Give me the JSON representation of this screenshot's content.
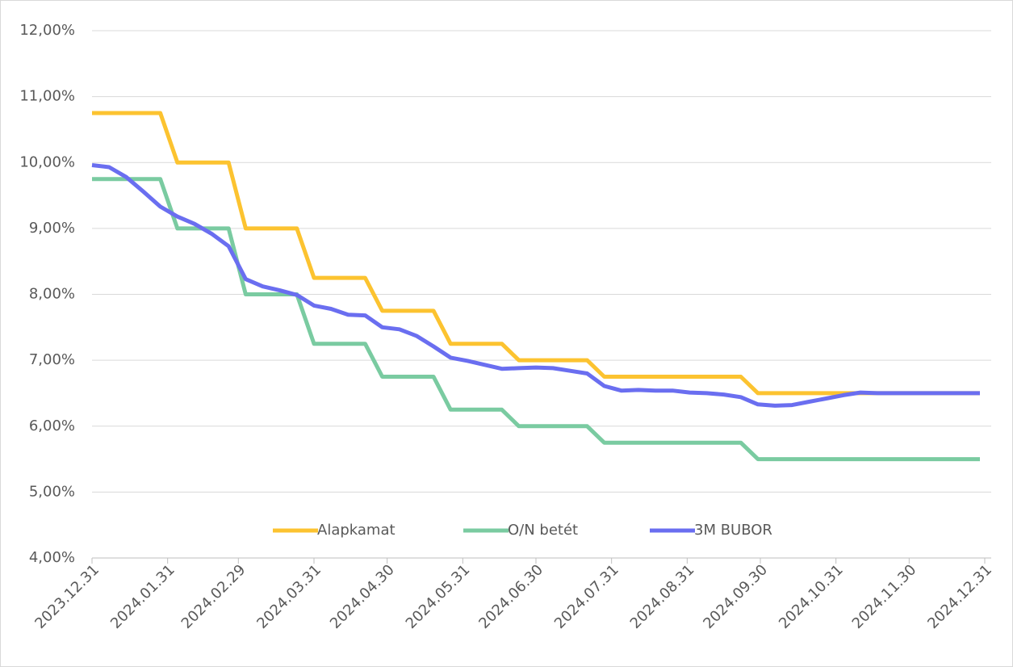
{
  "chart_data": {
    "type": "line",
    "x": [
      "2023.12.31",
      "2024.01.07",
      "2024.01.14",
      "2024.01.21",
      "2024.01.28",
      "2024.02.04",
      "2024.02.11",
      "2024.02.18",
      "2024.02.25",
      "2024.03.03",
      "2024.03.10",
      "2024.03.17",
      "2024.03.24",
      "2024.03.31",
      "2024.04.07",
      "2024.04.14",
      "2024.04.21",
      "2024.04.28",
      "2024.05.05",
      "2024.05.12",
      "2024.05.19",
      "2024.05.26",
      "2024.06.02",
      "2024.06.09",
      "2024.06.16",
      "2024.06.23",
      "2024.06.30",
      "2024.07.07",
      "2024.07.14",
      "2024.07.21",
      "2024.07.28",
      "2024.08.04",
      "2024.08.11",
      "2024.08.18",
      "2024.08.25",
      "2024.09.01",
      "2024.09.08",
      "2024.09.15",
      "2024.09.22",
      "2024.09.29",
      "2024.10.06",
      "2024.10.13",
      "2024.10.20",
      "2024.10.27",
      "2024.11.03",
      "2024.11.10",
      "2024.11.17",
      "2024.11.24",
      "2024.12.01",
      "2024.12.08",
      "2024.12.15",
      "2024.12.22",
      "2024.12.29"
    ],
    "series": [
      {
        "name": "Alapkamat",
        "color": "#fcc330",
        "values": [
          10.75,
          10.75,
          10.75,
          10.75,
          10.75,
          10,
          10,
          10,
          10,
          9,
          9,
          9,
          9,
          8.25,
          8.25,
          8.25,
          8.25,
          7.75,
          7.75,
          7.75,
          7.75,
          7.25,
          7.25,
          7.25,
          7.25,
          7,
          7,
          7,
          7,
          7,
          6.75,
          6.75,
          6.75,
          6.75,
          6.75,
          6.75,
          6.75,
          6.75,
          6.75,
          6.5,
          6.5,
          6.5,
          6.5,
          6.5,
          6.5,
          6.5,
          6.5,
          6.5,
          6.5,
          6.5,
          6.5,
          6.5,
          6.5
        ]
      },
      {
        "name": "O/N betét",
        "color": "#7acba1",
        "values": [
          9.75,
          9.75,
          9.75,
          9.75,
          9.75,
          9,
          9,
          9,
          9,
          8,
          8,
          8,
          8,
          7.25,
          7.25,
          7.25,
          7.25,
          6.75,
          6.75,
          6.75,
          6.75,
          6.25,
          6.25,
          6.25,
          6.25,
          6,
          6,
          6,
          6,
          6,
          5.75,
          5.75,
          5.75,
          5.75,
          5.75,
          5.75,
          5.75,
          5.75,
          5.75,
          5.5,
          5.5,
          5.5,
          5.5,
          5.5,
          5.5,
          5.5,
          5.5,
          5.5,
          5.5,
          5.5,
          5.5,
          5.5,
          5.5
        ]
      },
      {
        "name": "3M BUBOR",
        "color": "#6a6ef0",
        "values": [
          9.96,
          9.93,
          9.78,
          9.56,
          9.33,
          9.18,
          9.07,
          8.92,
          8.73,
          8.23,
          8.12,
          8.06,
          7.99,
          7.83,
          7.78,
          7.69,
          7.68,
          7.5,
          7.47,
          7.37,
          7.21,
          7.04,
          6.99,
          6.93,
          6.87,
          6.88,
          6.89,
          6.88,
          6.84,
          6.8,
          6.61,
          6.54,
          6.55,
          6.54,
          6.54,
          6.51,
          6.5,
          6.48,
          6.44,
          6.33,
          6.31,
          6.32,
          6.37,
          6.42,
          6.47,
          6.51,
          6.5,
          6.5,
          6.5,
          6.5,
          6.5,
          6.5,
          6.5
        ]
      }
    ],
    "xlim": [
      "2023.12.31",
      "2024.12.31"
    ],
    "xticks": [
      "2023.12.31",
      "2024.01.31",
      "2024.02.29",
      "2024.03.31",
      "2024.04.30",
      "2024.05.31",
      "2024.06.30",
      "2024.07.31",
      "2024.08.31",
      "2024.09.30",
      "2024.10.31",
      "2024.11.30",
      "2024.12.31"
    ],
    "ylim": [
      4,
      12
    ],
    "yticks": [
      {
        "value": 4,
        "label": "4,00%"
      },
      {
        "value": 5,
        "label": "5,00%"
      },
      {
        "value": 6,
        "label": "6,00%"
      },
      {
        "value": 7,
        "label": "7,00%"
      },
      {
        "value": 8,
        "label": "8,00%"
      },
      {
        "value": 9,
        "label": "9,00%"
      },
      {
        "value": 10,
        "label": "10,00%"
      },
      {
        "value": 11,
        "label": "11,00%"
      },
      {
        "value": 12,
        "label": "12,00%"
      }
    ],
    "grid": true,
    "legend": "bottom"
  }
}
